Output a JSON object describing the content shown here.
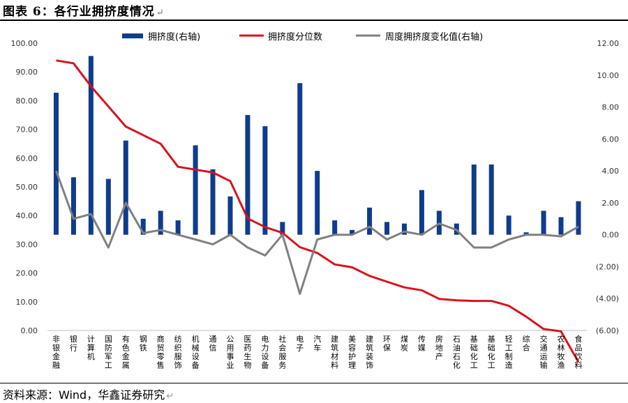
{
  "title": "图表 6：各行业拥挤度情况",
  "source": "资料来源：Wind，华鑫证券研究",
  "colors": {
    "bar": "#0f3c8c",
    "pct_line": "#d8121e",
    "chg_line": "#808080"
  },
  "chart_data": {
    "type": "bar+line",
    "categories": [
      "非银金融",
      "银行",
      "计算机",
      "国防军工",
      "有色金属",
      "钢铁",
      "商贸零售",
      "纺织服饰",
      "机械设备",
      "通信",
      "公用事业",
      "医药生物",
      "电力设备",
      "社会服务",
      "电子",
      "汽车",
      "建筑材料",
      "美容护理",
      "建筑装饰",
      "环保",
      "煤炭",
      "传媒",
      "房地产",
      "石油石化",
      "基础化工",
      "基础化工",
      "轻工制造",
      "综合",
      "交通运输",
      "农林牧渔",
      "食品饮料"
    ],
    "category_labels": [
      "非银金融",
      "银行",
      "计算机",
      "国防军工",
      "有色金属",
      "钢铁",
      "商贸零售",
      "纺织服饰",
      "机械设备",
      "通信",
      "公用事业",
      "医药生物",
      "电力设备",
      "社会服务",
      "电子",
      "汽车",
      "建筑材料",
      "美容护理",
      "建筑装饰",
      "环保",
      "煤炭",
      "传媒",
      "房地产",
      "石油石化",
      "基础化工",
      "基础化工",
      "轻工制造",
      "综合",
      "交通运输",
      "农林牧渔",
      "食品饮料"
    ],
    "series": [
      {
        "name": "拥挤度(右轴)",
        "type": "bar",
        "axis": "right",
        "values": [
          8.9,
          3.6,
          11.2,
          3.5,
          5.9,
          1.0,
          1.5,
          0.9,
          5.6,
          4.1,
          2.4,
          7.5,
          6.8,
          0.8,
          9.5,
          4.0,
          0.9,
          0.3,
          1.7,
          0.8,
          0.7,
          2.8,
          1.5,
          0.7,
          4.4,
          4.4,
          1.2,
          0.15,
          1.5,
          1.1,
          2.1
        ]
      },
      {
        "name": "拥挤度分位数",
        "type": "line",
        "axis": "left",
        "values": [
          94,
          93,
          85,
          78,
          71,
          68,
          65,
          57,
          56,
          55,
          52,
          39,
          36,
          34,
          29,
          27,
          23,
          22,
          19,
          17,
          15,
          14,
          11,
          10.5,
          10.3,
          10.3,
          8.6,
          4.8,
          0.5,
          -0.3,
          -11
        ]
      },
      {
        "name": "周度拥挤度变化值(右轴)",
        "type": "line",
        "axis": "right",
        "values": [
          4.0,
          1.0,
          1.3,
          -0.8,
          2.0,
          0.1,
          0.3,
          0.0,
          -0.3,
          -0.6,
          0.0,
          -0.8,
          -1.3,
          0.0,
          -3.7,
          -0.3,
          0.0,
          0.0,
          0.5,
          -0.3,
          0.2,
          0.0,
          0.7,
          0.3,
          -0.8,
          -0.8,
          -0.3,
          0.0,
          0.0,
          -0.1,
          0.5
        ]
      }
    ],
    "left_axis": {
      "min": 0,
      "max": 100,
      "step": 10,
      "tick_labels": [
        "0.00",
        "10.00",
        "20.00",
        "30.00",
        "40.00",
        "50.00",
        "60.00",
        "70.00",
        "80.00",
        "90.00",
        "100.00"
      ]
    },
    "right_axis": {
      "min": -6,
      "max": 12,
      "step": 2,
      "tick_labels": [
        "(6.00)",
        "(4.00)",
        "(2.00)",
        "0.00",
        "2.00",
        "4.00",
        "6.00",
        "8.00",
        "10.00",
        "12.00"
      ]
    },
    "legend_position": "top-center"
  }
}
